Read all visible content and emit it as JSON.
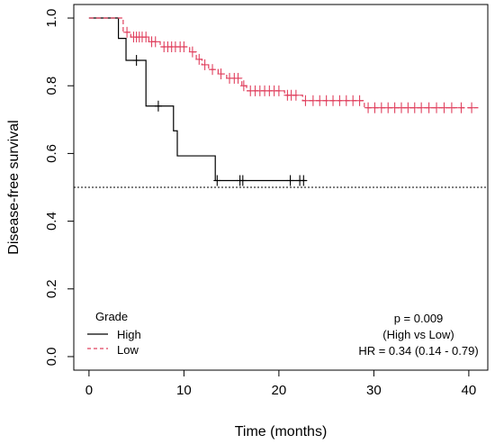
{
  "chart_data": {
    "type": "line",
    "title": "",
    "xlabel": "Time (months)",
    "ylabel": "Disease-free survival",
    "xlim": [
      -1.6,
      42
    ],
    "ylim": [
      -0.04,
      1.04
    ],
    "x_ticks": [
      0,
      10,
      20,
      30,
      40
    ],
    "y_ticks": [
      0.0,
      0.2,
      0.4,
      0.6,
      0.8,
      1.0
    ],
    "y_tick_labels": [
      "0.0",
      "0.2",
      "0.4",
      "0.6",
      "0.8",
      "1.0"
    ],
    "reference_line": {
      "y": 0.5,
      "style": "dotted"
    },
    "legend": {
      "title": "Grade",
      "placement": "bottom-left"
    },
    "annotations": [
      "p = 0.009",
      "(High vs Low)",
      "HR = 0.34 (0.14 - 0.79)"
    ],
    "colors": {
      "High": "#000000",
      "Low": "#e0405e"
    },
    "series": [
      {
        "name": "High",
        "style": "solid",
        "steps": [
          [
            0,
            1.0
          ],
          [
            3.1,
            0.94
          ],
          [
            3.9,
            0.875
          ],
          [
            6.0,
            0.74
          ],
          [
            8.9,
            0.667
          ],
          [
            9.3,
            0.593
          ],
          [
            13.3,
            0.52
          ],
          [
            22.9,
            0.52
          ]
        ],
        "censors": [
          [
            5.0,
            0.875
          ],
          [
            7.3,
            0.74
          ],
          [
            13.5,
            0.52
          ],
          [
            15.9,
            0.52
          ],
          [
            16.2,
            0.52
          ],
          [
            21.2,
            0.52
          ],
          [
            22.2,
            0.52
          ],
          [
            22.6,
            0.52
          ]
        ]
      },
      {
        "name": "Low",
        "style": "dashed",
        "steps": [
          [
            0,
            1.0
          ],
          [
            3.6,
            0.958
          ],
          [
            4.4,
            0.944
          ],
          [
            6.3,
            0.93
          ],
          [
            7.5,
            0.915
          ],
          [
            10.6,
            0.9
          ],
          [
            11.3,
            0.878
          ],
          [
            11.9,
            0.862
          ],
          [
            12.6,
            0.848
          ],
          [
            13.6,
            0.835
          ],
          [
            14.5,
            0.822
          ],
          [
            16.1,
            0.8
          ],
          [
            16.6,
            0.785
          ],
          [
            20.6,
            0.772
          ],
          [
            22.5,
            0.756
          ],
          [
            29.0,
            0.735
          ],
          [
            41.0,
            0.735
          ]
        ],
        "censors": [
          [
            4.0,
            0.958
          ],
          [
            4.7,
            0.944
          ],
          [
            5.0,
            0.944
          ],
          [
            5.3,
            0.944
          ],
          [
            5.6,
            0.944
          ],
          [
            6.0,
            0.944
          ],
          [
            6.6,
            0.93
          ],
          [
            7.0,
            0.93
          ],
          [
            7.9,
            0.915
          ],
          [
            8.3,
            0.915
          ],
          [
            8.7,
            0.915
          ],
          [
            9.1,
            0.915
          ],
          [
            9.6,
            0.915
          ],
          [
            10.0,
            0.915
          ],
          [
            10.9,
            0.9
          ],
          [
            11.6,
            0.878
          ],
          [
            12.2,
            0.862
          ],
          [
            13.0,
            0.848
          ],
          [
            13.9,
            0.835
          ],
          [
            14.8,
            0.822
          ],
          [
            15.3,
            0.822
          ],
          [
            15.7,
            0.822
          ],
          [
            16.3,
            0.8
          ],
          [
            17.0,
            0.785
          ],
          [
            17.5,
            0.785
          ],
          [
            18.0,
            0.785
          ],
          [
            18.5,
            0.785
          ],
          [
            19.0,
            0.785
          ],
          [
            19.5,
            0.785
          ],
          [
            20.0,
            0.785
          ],
          [
            20.9,
            0.772
          ],
          [
            21.3,
            0.772
          ],
          [
            21.8,
            0.772
          ],
          [
            22.8,
            0.756
          ],
          [
            23.6,
            0.756
          ],
          [
            24.3,
            0.756
          ],
          [
            25.0,
            0.756
          ],
          [
            25.7,
            0.756
          ],
          [
            26.4,
            0.756
          ],
          [
            27.1,
            0.756
          ],
          [
            27.8,
            0.756
          ],
          [
            28.5,
            0.756
          ],
          [
            29.4,
            0.735
          ],
          [
            30.1,
            0.735
          ],
          [
            30.8,
            0.735
          ],
          [
            31.5,
            0.735
          ],
          [
            32.2,
            0.735
          ],
          [
            32.9,
            0.735
          ],
          [
            33.6,
            0.735
          ],
          [
            34.3,
            0.735
          ],
          [
            35.0,
            0.735
          ],
          [
            35.8,
            0.735
          ],
          [
            36.6,
            0.735
          ],
          [
            37.4,
            0.735
          ],
          [
            38.2,
            0.735
          ],
          [
            39.2,
            0.735
          ],
          [
            40.3,
            0.735
          ]
        ]
      }
    ]
  }
}
